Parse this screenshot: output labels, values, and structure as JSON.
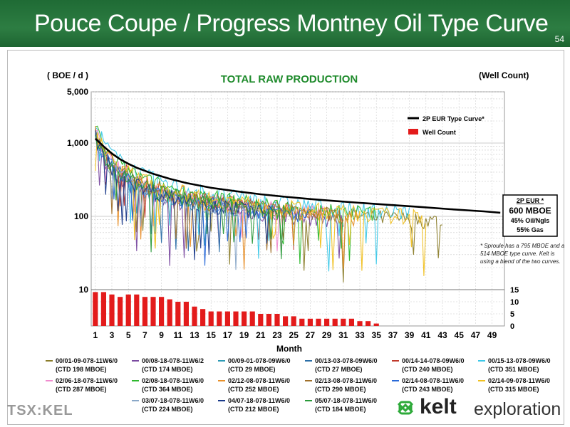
{
  "header": {
    "title": "Pouce Coupe / Progress Montney Oil Type Curve",
    "page_number": "54"
  },
  "chart_data": {
    "type": "line",
    "title": "TOTAL RAW PRODUCTION",
    "ylabel_left": "( BOE / d )",
    "ylabel_right": "(Well Count)",
    "xlabel": "Month",
    "x_ticks": [
      "1",
      "3",
      "5",
      "7",
      "9",
      "11",
      "13",
      "15",
      "17",
      "19",
      "21",
      "23",
      "25",
      "27",
      "29",
      "31",
      "33",
      "35",
      "37",
      "39",
      "41",
      "43",
      "45",
      "47",
      "49"
    ],
    "y_ticks": [
      "5,000",
      "1,000",
      "100",
      "10"
    ],
    "y_scale": "log",
    "y_range": [
      10,
      5000
    ],
    "right_y_ticks": [
      "15",
      "10",
      "5",
      "0"
    ],
    "right_y_range": [
      0,
      15
    ],
    "grid": true,
    "series_legend": [
      {
        "name": "2P EUR Type Curve*",
        "color": "#000000"
      },
      {
        "name": "Well Count",
        "color": "#e31b1b"
      }
    ],
    "type_curve": {
      "months": [
        1,
        2,
        3,
        4,
        5,
        6,
        8,
        10,
        12,
        15,
        18,
        21,
        24,
        27,
        30,
        33,
        36,
        40,
        44,
        48,
        50
      ],
      "boe_per_day": [
        1150,
        900,
        720,
        600,
        520,
        460,
        380,
        325,
        285,
        245,
        220,
        200,
        185,
        172,
        162,
        153,
        145,
        135,
        125,
        117,
        112
      ]
    },
    "well_count": {
      "months": [
        1,
        2,
        3,
        4,
        5,
        6,
        7,
        8,
        9,
        10,
        11,
        12,
        13,
        14,
        15,
        16,
        17,
        18,
        19,
        20,
        21,
        22,
        23,
        24,
        25,
        26,
        27,
        28,
        29,
        30,
        31,
        32,
        33,
        34,
        35
      ],
      "values": [
        14,
        14,
        13,
        12,
        13,
        13,
        12,
        12,
        12,
        11,
        10,
        10,
        8,
        7,
        6,
        6,
        6,
        6,
        6,
        6,
        5,
        5,
        5,
        4,
        4,
        3,
        3,
        3,
        3,
        3,
        3,
        3,
        2,
        2,
        1
      ]
    },
    "annotation_eur": {
      "line1": "2P EUR *",
      "line2": "600 MBOE",
      "line3": "45% Oil/Ngls",
      "line4": "55% Gas"
    },
    "footnote": "* Sproule has a 795 MBOE and a 514 MBOE type curve. Kelt is using a blend of the two curves.",
    "wells": [
      {
        "name": "00/01-09-078-11W6/0",
        "ctd": "(CTD 198 MBOE)",
        "color": "#8b7d2a"
      },
      {
        "name": "00/08-18-078-11W6/2",
        "ctd": "(CTD 174 MBOE)",
        "color": "#7a4aa0"
      },
      {
        "name": "00/09-01-078-09W6/0",
        "ctd": "(CTD 29 MBOE)",
        "color": "#2d9ab5"
      },
      {
        "name": "00/13-03-078-09W6/0",
        "ctd": "(CTD 27 MBOE)",
        "color": "#2b6fa8"
      },
      {
        "name": "00/14-14-078-09W6/0",
        "ctd": "(CTD 240 MBOE)",
        "color": "#c0392b"
      },
      {
        "name": "00/15-13-078-09W6/0",
        "ctd": "(CTD 351 MBOE)",
        "color": "#3cc8e8"
      },
      {
        "name": "02/06-18-078-11W6/0",
        "ctd": "(CTD 287 MBOE)",
        "color": "#f08ccf"
      },
      {
        "name": "02/08-18-078-11W6/0",
        "ctd": "(CTD 364 MBOE)",
        "color": "#2eb82e"
      },
      {
        "name": "02/12-08-078-11W6/0",
        "ctd": "(CTD 252 MBOE)",
        "color": "#e8902a"
      },
      {
        "name": "02/13-08-078-11W6/0",
        "ctd": "(CTD 290 MBOE)",
        "color": "#a0702a"
      },
      {
        "name": "02/14-08-078-11W6/0",
        "ctd": "(CTD 243 MBOE)",
        "color": "#2a6ad8"
      },
      {
        "name": "02/14-09-078-11W6/0",
        "ctd": "(CTD 315 MBOE)",
        "color": "#f0c020"
      },
      {
        "name": "03/07-18-078-11W6/0",
        "ctd": "(CTD 224 MBOE)",
        "color": "#8aa8c8"
      },
      {
        "name": "04/07-18-078-11W6/0",
        "ctd": "(CTD 212 MBOE)",
        "color": "#1a3a8a"
      },
      {
        "name": "05/07-18-078-11W6/0",
        "ctd": "(CTD 184 MBOE)",
        "color": "#2a9a3a"
      }
    ]
  },
  "footer": {
    "tsx": "TSX:KEL",
    "brand": "kelt",
    "brand_suffix": "exploration"
  },
  "colors": {
    "header_green": "#2d7d42",
    "title_green": "#1f8b2c",
    "bar_red": "#e31b1b"
  }
}
